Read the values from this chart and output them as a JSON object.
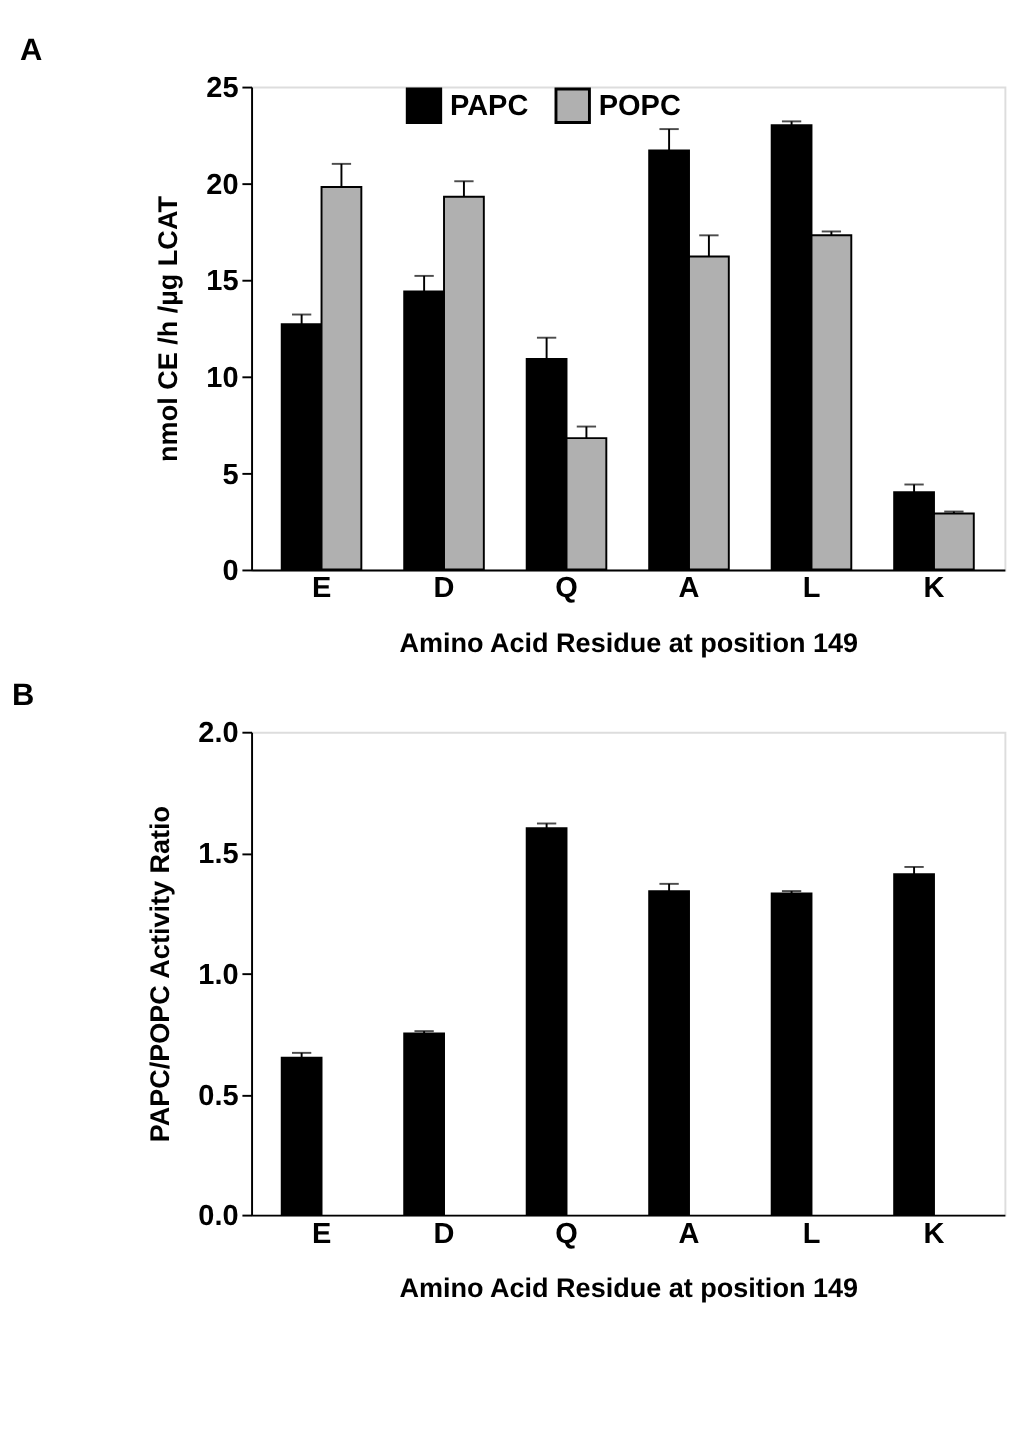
{
  "chart_data": [
    {
      "type": "bar",
      "title": "A",
      "xlabel": "Amino Acid Residue at position 149",
      "ylabel": "nmol CE /h /µg LCAT",
      "categories": [
        "E",
        "D",
        "Q",
        "A",
        "L",
        "K"
      ],
      "series": [
        {
          "name": "PAPC",
          "color": "#000000",
          "values": [
            12.7,
            14.4,
            10.9,
            21.7,
            23.0,
            4.0
          ],
          "errors": [
            [
              12.7,
              13.2
            ],
            [
              14.4,
              15.2
            ],
            [
              10.9,
              12.0
            ],
            [
              21.7,
              22.8
            ],
            [
              23.0,
              23.2
            ],
            [
              4.0,
              4.4
            ]
          ]
        },
        {
          "name": "POPC",
          "color": "#b0b0b0",
          "values": [
            19.8,
            19.3,
            6.8,
            16.2,
            17.3,
            2.9
          ],
          "errors": [
            [
              19.8,
              21.0
            ],
            [
              19.3,
              20.1
            ],
            [
              6.8,
              7.4
            ],
            [
              16.2,
              17.3
            ],
            [
              17.3,
              17.5
            ],
            [
              2.9,
              3.0
            ]
          ]
        }
      ],
      "ylim": [
        0,
        25
      ],
      "yticks": [
        0,
        5,
        10,
        15,
        20,
        25
      ],
      "grid": false,
      "legend": "top"
    },
    {
      "type": "bar",
      "title": "B",
      "xlabel": "Amino Acid Residue at position 149",
      "ylabel": "PAPC/POPC Activity Ratio",
      "categories": [
        "E",
        "D",
        "Q",
        "A",
        "L",
        "K"
      ],
      "series": [
        {
          "color": "#000000",
          "values": [
            0.65,
            0.75,
            1.6,
            1.34,
            1.33,
            1.41
          ],
          "errors": [
            [
              0.65,
              0.67
            ],
            [
              0.75,
              0.76
            ],
            [
              1.6,
              1.62
            ],
            [
              1.34,
              1.37
            ],
            [
              1.33,
              1.34
            ],
            [
              1.41,
              1.44
            ]
          ]
        }
      ],
      "ylim": [
        0,
        2
      ],
      "yticks": [
        {
          "value": 0,
          "label": "0.0"
        },
        {
          "value": 0.5,
          "label": "0.5"
        },
        {
          "value": 1,
          "label": "1.0"
        },
        {
          "value": 1.5,
          "label": "1.5"
        },
        {
          "value": 2,
          "label": "2.0"
        }
      ],
      "grid": false,
      "legend": false
    }
  ]
}
